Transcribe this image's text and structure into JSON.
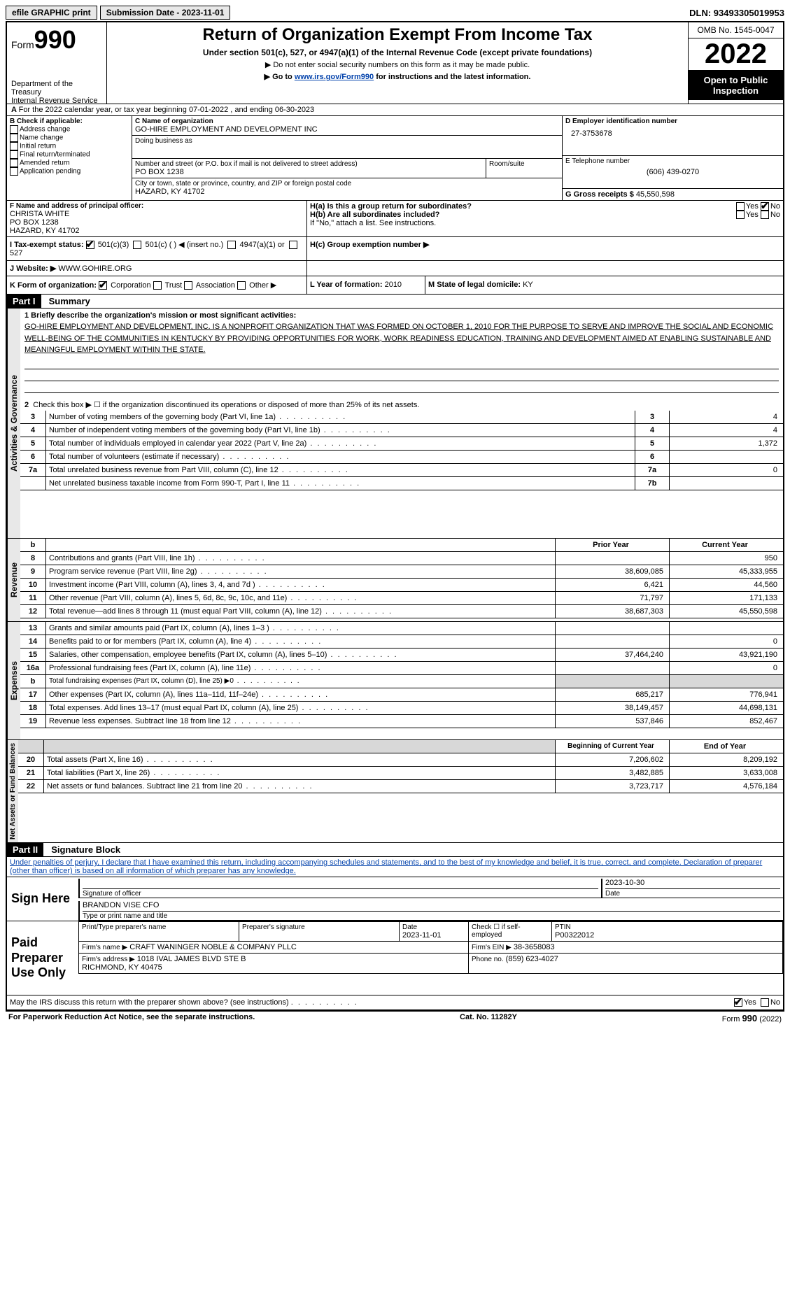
{
  "topbar": {
    "efile": "efile GRAPHIC print",
    "submission": "Submission Date - 2023-11-01",
    "dln": "DLN: 93493305019953"
  },
  "header": {
    "form_word": "Form",
    "form_num": "990",
    "dept": "Department of the Treasury",
    "irs": "Internal Revenue Service",
    "title": "Return of Organization Exempt From Income Tax",
    "subtitle": "Under section 501(c), 527, or 4947(a)(1) of the Internal Revenue Code (except private foundations)",
    "note1": "▶ Do not enter social security numbers on this form as it may be made public.",
    "note2_pre": "▶ Go to ",
    "note2_link": "www.irs.gov/Form990",
    "note2_post": " for instructions and the latest information.",
    "omb": "OMB No. 1545-0047",
    "year": "2022",
    "open": "Open to Public Inspection"
  },
  "A": {
    "text": "For the 2022 calendar year, or tax year beginning 07-01-2022    , and ending 06-30-2023"
  },
  "B": {
    "label": "B Check if applicable:",
    "items": [
      "Address change",
      "Name change",
      "Initial return",
      "Final return/terminated",
      "Amended return",
      "Application pending"
    ]
  },
  "C": {
    "name_label": "C Name of organization",
    "name": "GO-HIRE EMPLOYMENT AND DEVELOPMENT INC",
    "dba_label": "Doing business as",
    "street_label": "Number and street (or P.O. box if mail is not delivered to street address)",
    "street": "PO BOX 1238",
    "room_label": "Room/suite",
    "city_label": "City or town, state or province, country, and ZIP or foreign postal code",
    "city": "HAZARD, KY  41702"
  },
  "D": {
    "label": "D Employer identification number",
    "value": "27-3753678"
  },
  "E": {
    "label": "E Telephone number",
    "value": "(606) 439-0270"
  },
  "G": {
    "label": "G Gross receipts $",
    "value": "45,550,598"
  },
  "F": {
    "label": "F  Name and address of principal officer:",
    "name": "CHRISTA WHITE",
    "street": "PO BOX 1238",
    "city": "HAZARD, KY  41702"
  },
  "H": {
    "a": "H(a)  Is this a group return for subordinates?",
    "b": "H(b)  Are all subordinates included?",
    "bnote": "If \"No,\" attach a list. See instructions.",
    "c": "H(c)  Group exemption number ▶",
    "yes": "Yes",
    "no": "No"
  },
  "I": {
    "label": "I  Tax-exempt status:",
    "opt1": "501(c)(3)",
    "opt2": "501(c) (  ) ◀ (insert no.)",
    "opt3": "4947(a)(1) or",
    "opt4": "527"
  },
  "J": {
    "label": "J  Website: ▶",
    "value": "WWW.GOHIRE.ORG"
  },
  "K": {
    "label": "K Form of organization:",
    "opts": [
      "Corporation",
      "Trust",
      "Association",
      "Other ▶"
    ]
  },
  "L": {
    "label": "L Year of formation:",
    "value": "2010"
  },
  "M": {
    "label": "M State of legal domicile:",
    "value": "KY"
  },
  "part1": {
    "label": "Part I",
    "title": "Summary"
  },
  "summary": {
    "line1_label": "1  Briefly describe the organization's mission or most significant activities:",
    "mission": "GO-HIRE EMPLOYMENT AND DEVELOPMENT, INC. IS A NONPROFIT ORGANIZATION THAT WAS FORMED ON OCTOBER 1, 2010 FOR THE PURPOSE TO SERVE AND IMPROVE THE SOCIAL AND ECONOMIC WELL-BEING OF THE COMMUNITIES IN KENTUCKY BY PROVIDING OPPORTUNITIES FOR WORK, WORK READINESS EDUCATION, TRAINING AND DEVELOPMENT AIMED AT ENABLING SUSTAINABLE AND MEANINGFUL EMPLOYMENT WITHIN THE STATE.",
    "line2": "Check this box ▶ ☐  if the organization discontinued its operations or disposed of more than 25% of its net assets.",
    "rows_ag": [
      {
        "n": "3",
        "t": "Number of voting members of the governing body (Part VI, line 1a)",
        "ln": "3",
        "v": "4"
      },
      {
        "n": "4",
        "t": "Number of independent voting members of the governing body (Part VI, line 1b)",
        "ln": "4",
        "v": "4"
      },
      {
        "n": "5",
        "t": "Total number of individuals employed in calendar year 2022 (Part V, line 2a)",
        "ln": "5",
        "v": "1,372"
      },
      {
        "n": "6",
        "t": "Total number of volunteers (estimate if necessary)",
        "ln": "6",
        "v": ""
      },
      {
        "n": "7a",
        "t": "Total unrelated business revenue from Part VIII, column (C), line 12",
        "ln": "7a",
        "v": "0"
      },
      {
        "n": "",
        "t": "Net unrelated business taxable income from Form 990-T, Part I, line 11",
        "ln": "7b",
        "v": ""
      }
    ],
    "headers": {
      "prior": "Prior Year",
      "current": "Current Year",
      "begin": "Beginning of Current Year",
      "end": "End of Year"
    },
    "revenue": [
      {
        "n": "8",
        "t": "Contributions and grants (Part VIII, line 1h)",
        "p": "",
        "c": "950"
      },
      {
        "n": "9",
        "t": "Program service revenue (Part VIII, line 2g)",
        "p": "38,609,085",
        "c": "45,333,955"
      },
      {
        "n": "10",
        "t": "Investment income (Part VIII, column (A), lines 3, 4, and 7d )",
        "p": "6,421",
        "c": "44,560"
      },
      {
        "n": "11",
        "t": "Other revenue (Part VIII, column (A), lines 5, 6d, 8c, 9c, 10c, and 11e)",
        "p": "71,797",
        "c": "171,133"
      },
      {
        "n": "12",
        "t": "Total revenue—add lines 8 through 11 (must equal Part VIII, column (A), line 12)",
        "p": "38,687,303",
        "c": "45,550,598"
      }
    ],
    "expenses": [
      {
        "n": "13",
        "t": "Grants and similar amounts paid (Part IX, column (A), lines 1–3 )",
        "p": "",
        "c": ""
      },
      {
        "n": "14",
        "t": "Benefits paid to or for members (Part IX, column (A), line 4)",
        "p": "",
        "c": "0"
      },
      {
        "n": "15",
        "t": "Salaries, other compensation, employee benefits (Part IX, column (A), lines 5–10)",
        "p": "37,464,240",
        "c": "43,921,190"
      },
      {
        "n": "16a",
        "t": "Professional fundraising fees (Part IX, column (A), line 11e)",
        "p": "",
        "c": "0"
      },
      {
        "n": "b",
        "t": "Total fundraising expenses (Part IX, column (D), line 25) ▶0",
        "p": "SHADE",
        "c": "SHADE"
      },
      {
        "n": "17",
        "t": "Other expenses (Part IX, column (A), lines 11a–11d, 11f–24e)",
        "p": "685,217",
        "c": "776,941"
      },
      {
        "n": "18",
        "t": "Total expenses. Add lines 13–17 (must equal Part IX, column (A), line 25)",
        "p": "38,149,457",
        "c": "44,698,131"
      },
      {
        "n": "19",
        "t": "Revenue less expenses. Subtract line 18 from line 12",
        "p": "537,846",
        "c": "852,467"
      }
    ],
    "netassets": [
      {
        "n": "20",
        "t": "Total assets (Part X, line 16)",
        "p": "7,206,602",
        "c": "8,209,192"
      },
      {
        "n": "21",
        "t": "Total liabilities (Part X, line 26)",
        "p": "3,482,885",
        "c": "3,633,008"
      },
      {
        "n": "22",
        "t": "Net assets or fund balances. Subtract line 21 from line 20",
        "p": "3,723,717",
        "c": "4,576,184"
      }
    ]
  },
  "tabs": {
    "ag": "Activities & Governance",
    "rev": "Revenue",
    "exp": "Expenses",
    "na": "Net Assets or Fund Balances"
  },
  "part2": {
    "label": "Part II",
    "title": "Signature Block"
  },
  "sig": {
    "perjury": "Under penalties of perjury, I declare that I have examined this return, including accompanying schedules and statements, and to the best of my knowledge and belief, it is true, correct, and complete. Declaration of preparer (other than officer) is based on all information of which preparer has any knowledge.",
    "sign_here": "Sign Here",
    "sig_officer": "Signature of officer",
    "date": "Date",
    "date_val": "2023-10-30",
    "name": "BRANDON VISE CFO",
    "name_label": "Type or print name and title",
    "paid": "Paid Preparer Use Only",
    "h1": "Print/Type preparer's name",
    "h2": "Preparer's signature",
    "h3": "Date",
    "h3v": "2023-11-01",
    "h4": "Check ☐ if self-employed",
    "h5": "PTIN",
    "h5v": "P00322012",
    "firm_name_l": "Firm's name    ▶",
    "firm_name": "CRAFT WANINGER NOBLE & COMPANY PLLC",
    "firm_ein_l": "Firm's EIN ▶",
    "firm_ein": "38-3658083",
    "firm_addr_l": "Firm's address ▶",
    "firm_addr": "1018 IVAL JAMES BLVD STE B\nRICHMOND, KY  40475",
    "phone_l": "Phone no.",
    "phone": "(859) 623-4027",
    "discuss": "May the IRS discuss this return with the preparer shown above? (see instructions)",
    "yes": "Yes",
    "no": "No"
  },
  "footer": {
    "left": "For Paperwork Reduction Act Notice, see the separate instructions.",
    "mid": "Cat. No. 11282Y",
    "right": "Form 990 (2022)"
  }
}
